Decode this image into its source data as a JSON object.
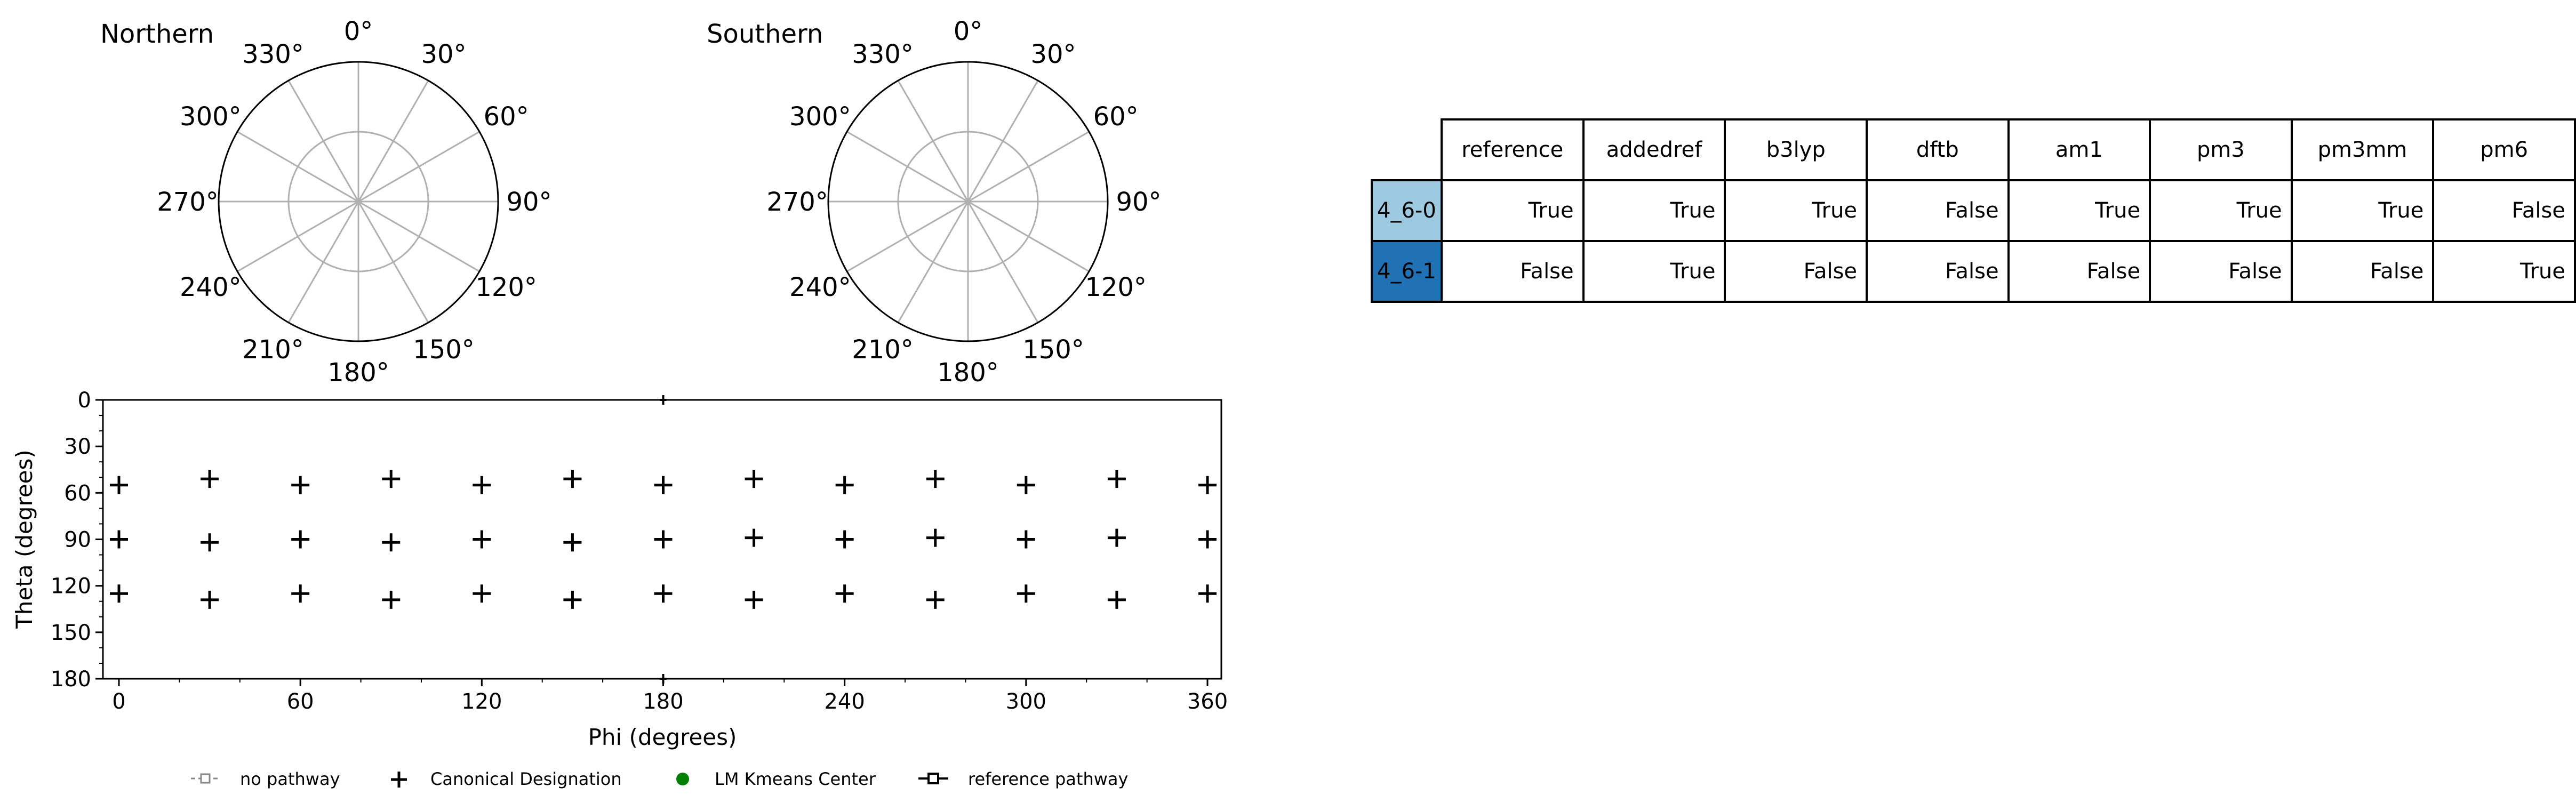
{
  "polar_titles": [
    "Northern",
    "Southern"
  ],
  "polar_angle_labels": [
    "0°",
    "30°",
    "60°",
    "90°",
    "120°",
    "150°",
    "180°",
    "210°",
    "240°",
    "270°",
    "300°",
    "330°"
  ],
  "colors": {
    "row0": "#9ecae1",
    "row1": "#2171b5",
    "grid": "#b0b0b0",
    "marker": "#000000",
    "kmeans": "#008000"
  },
  "chart_data": [
    {
      "type": "polar",
      "title": "Northern",
      "series": []
    },
    {
      "type": "polar",
      "title": "Southern",
      "series": []
    },
    {
      "type": "scatter",
      "xlabel": "Phi (degrees)",
      "ylabel": "Theta (degrees)",
      "xlim": [
        0,
        360
      ],
      "ylim": [
        180,
        0
      ],
      "x_ticks": [
        0,
        60,
        120,
        180,
        240,
        300,
        360
      ],
      "y_ticks": [
        0,
        30,
        60,
        90,
        120,
        150,
        180
      ],
      "y_inverted": true,
      "series": [
        {
          "name": "Canonical Designation",
          "marker": "plus",
          "points": [
            [
              0,
              55
            ],
            [
              30,
              51
            ],
            [
              60,
              55
            ],
            [
              90,
              51
            ],
            [
              120,
              55
            ],
            [
              150,
              51
            ],
            [
              180,
              55
            ],
            [
              210,
              51
            ],
            [
              240,
              55
            ],
            [
              270,
              51
            ],
            [
              300,
              55
            ],
            [
              330,
              51
            ],
            [
              360,
              55
            ],
            [
              0,
              90
            ],
            [
              30,
              92
            ],
            [
              60,
              90
            ],
            [
              90,
              92
            ],
            [
              120,
              90
            ],
            [
              150,
              92
            ],
            [
              180,
              90
            ],
            [
              210,
              89
            ],
            [
              240,
              90
            ],
            [
              270,
              89
            ],
            [
              300,
              90
            ],
            [
              330,
              89
            ],
            [
              360,
              90
            ],
            [
              0,
              125
            ],
            [
              30,
              129
            ],
            [
              60,
              125
            ],
            [
              90,
              129
            ],
            [
              120,
              125
            ],
            [
              150,
              129
            ],
            [
              180,
              125
            ],
            [
              210,
              129
            ],
            [
              240,
              125
            ],
            [
              270,
              129
            ],
            [
              300,
              125
            ],
            [
              330,
              129
            ],
            [
              360,
              125
            ]
          ]
        }
      ],
      "edge_ticks": [
        [
          180,
          0
        ],
        [
          180,
          180
        ]
      ]
    },
    {
      "type": "table",
      "columns": [
        "reference",
        "addedref",
        "b3lyp",
        "dftb",
        "am1",
        "pm3",
        "pm3mm",
        "pm6"
      ],
      "rows": [
        {
          "label": "4_6-0",
          "values": [
            "True",
            "True",
            "True",
            "False",
            "True",
            "True",
            "True",
            "False"
          ]
        },
        {
          "label": "4_6-1",
          "values": [
            "False",
            "True",
            "False",
            "False",
            "False",
            "False",
            "False",
            "True"
          ]
        }
      ]
    }
  ],
  "legend": [
    {
      "label": "no pathway",
      "icon": "dashed-square"
    },
    {
      "label": "Canonical Designation",
      "icon": "plus"
    },
    {
      "label": "LM Kmeans Center",
      "icon": "green-dot"
    },
    {
      "label": "reference pathway",
      "icon": "line-square"
    }
  ]
}
